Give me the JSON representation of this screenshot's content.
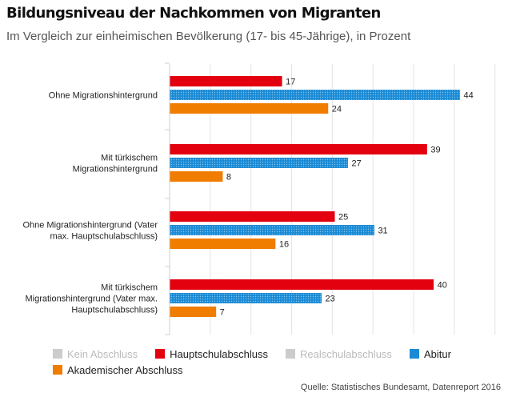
{
  "header": {
    "title": "Bildungsniveau der Nachkommen von Migranten",
    "subtitle": "Im Vergleich zur einheimischen Bevölkerung (17- bis 45-Jährige), in Prozent"
  },
  "source": "Quelle: Statistisches Bundesamt, Datenreport 2016",
  "chart_data": {
    "type": "bar",
    "orientation": "horizontal",
    "title": "Bildungsniveau der Nachkommen von Migranten",
    "subtitle": "Im Vergleich zur einheimischen Bevölkerung (17- bis 45-Jährige), in Prozent",
    "categories": [
      [
        "Ohne Migrationshintergrund"
      ],
      [
        "Mit türkischem",
        "Migrationshintergrund"
      ],
      [
        "Ohne Migrationshintergrund (Vater",
        "max. Hauptschulabschluss)"
      ],
      [
        "Mit türkischem",
        "Migrationshintergrund (Vater max.",
        "Hauptschulabschluss)"
      ]
    ],
    "series": [
      {
        "name": "Hauptschulabschluss",
        "color": "#e3000f",
        "pattern": "solid",
        "values": [
          17,
          39,
          25,
          40
        ]
      },
      {
        "name": "Abitur",
        "color": "#1a8ad4",
        "pattern": "dotted",
        "values": [
          44,
          27,
          31,
          23
        ]
      },
      {
        "name": "Akademischer Abschluss",
        "color": "#f07c00",
        "pattern": "solid",
        "values": [
          24,
          8,
          16,
          7
        ]
      }
    ],
    "xlim": [
      0,
      50
    ],
    "grid": true,
    "legend": {
      "position": "bottom",
      "entries": [
        {
          "name": "Kein Abschluss",
          "color": "#cccccc",
          "disabled": true
        },
        {
          "name": "Hauptschulabschluss",
          "color": "#e3000f",
          "disabled": false
        },
        {
          "name": "Realschulabschluss",
          "color": "#cccccc",
          "disabled": true
        },
        {
          "name": "Abitur",
          "color": "#1a8ad4",
          "disabled": false
        },
        {
          "name": "Akademischer Abschluss",
          "color": "#f07c00",
          "disabled": false
        }
      ]
    }
  }
}
